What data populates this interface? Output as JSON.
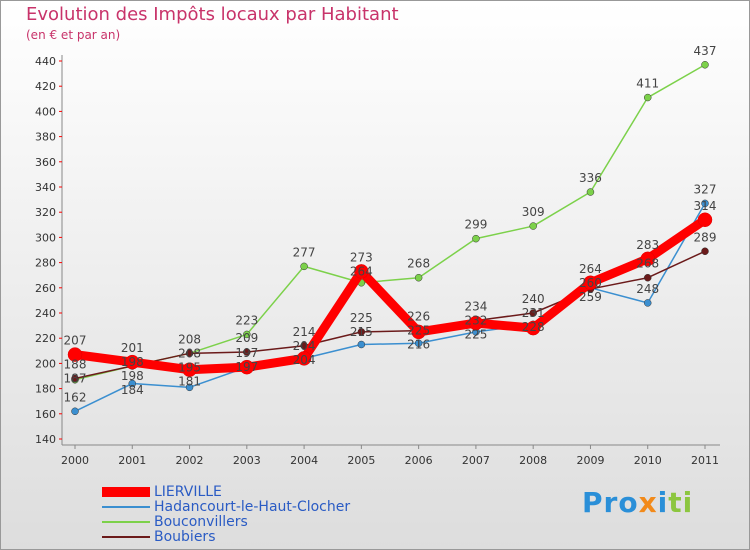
{
  "title": "Evolution des Impôts locaux par Habitant",
  "subtitle": "(en € et par an)",
  "logo": "Proxiti",
  "chart_data": {
    "type": "line",
    "title": "Evolution des Impôts locaux par Habitant",
    "ylabel": "(en € et par an)",
    "x": [
      2000,
      2001,
      2002,
      2003,
      2004,
      2005,
      2006,
      2007,
      2008,
      2009,
      2010,
      2011
    ],
    "ylim": [
      140,
      440
    ],
    "yticks": [
      140,
      160,
      180,
      200,
      220,
      240,
      260,
      280,
      300,
      320,
      340,
      360,
      380,
      400,
      420,
      440
    ],
    "series": [
      {
        "name": "LIERVILLE",
        "color": "#ff0000",
        "values": [
          207,
          201,
          195,
          197,
          204,
          273,
          225,
          232,
          228,
          264,
          283,
          314
        ]
      },
      {
        "name": "Hadancourt-le-Haut-Clocher",
        "color": "#3b8fd0",
        "values": [
          162,
          184,
          181,
          197,
          204,
          215,
          216,
          225,
          231,
          260,
          248,
          327
        ]
      },
      {
        "name": "Bouconvillers",
        "color": "#7cd14a",
        "values": [
          187,
          198,
          208,
          223,
          277,
          264,
          268,
          299,
          309,
          336,
          411,
          437
        ]
      },
      {
        "name": "Boubiers",
        "color": "#6b1a1a",
        "values": [
          188,
          198,
          208,
          209,
          214,
          225,
          226,
          234,
          240,
          259,
          268,
          289
        ]
      }
    ]
  }
}
